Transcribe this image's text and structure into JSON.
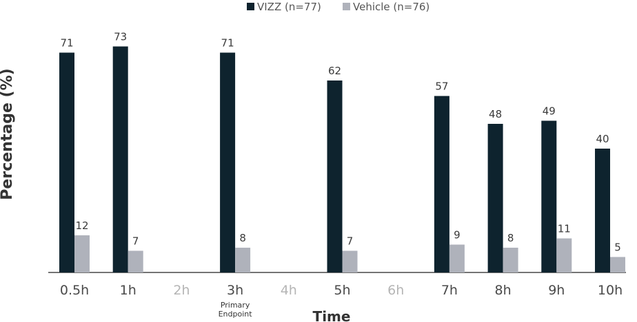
{
  "chart_data": {
    "type": "bar",
    "title": "",
    "xlabel": "Time",
    "ylabel": "Percentage (%)",
    "ylim": [
      0,
      73
    ],
    "grid": false,
    "legend_position": "top-center",
    "categories": [
      "0.5h",
      "1h",
      "2h",
      "3h",
      "4h",
      "5h",
      "6h",
      "7h",
      "8h",
      "9h",
      "10h"
    ],
    "muted_categories": [
      "2h",
      "4h",
      "6h"
    ],
    "series": [
      {
        "name": "VIZZ (n=77)",
        "color": "#0e232e",
        "values": [
          71,
          73,
          null,
          71,
          null,
          62,
          null,
          57,
          48,
          49,
          40
        ]
      },
      {
        "name": "Vehicle (n=76)",
        "color": "#afb2bb",
        "values": [
          12,
          7,
          null,
          8,
          null,
          7,
          null,
          9,
          8,
          11,
          5
        ]
      }
    ],
    "annotations": [
      {
        "category": "3h",
        "lines": [
          "Primary",
          "Endpoint"
        ]
      }
    ]
  }
}
